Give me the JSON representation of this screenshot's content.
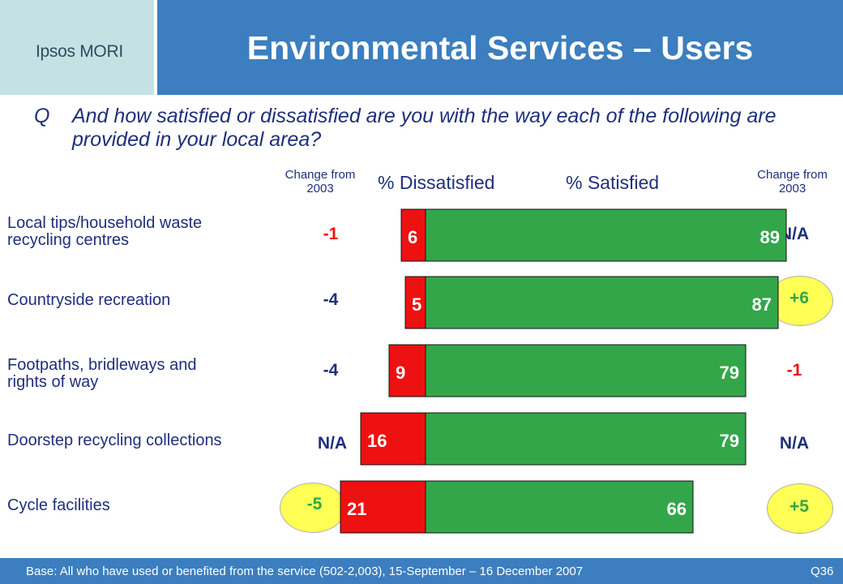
{
  "header": {
    "logo": "Ipsos MORI",
    "title": "Environmental Services – Users"
  },
  "question": {
    "letter": "Q",
    "text": "And how satisfied or dissatisfied are you with the way each of the following are provided in your local area?"
  },
  "column_headers": {
    "change_left_line1": "Change from",
    "change_left_line2": "2003",
    "dissatisfied": "% Dissatisfied",
    "satisfied": "% Satisfied",
    "change_right_line1": "Change from",
    "change_right_line2": "2003"
  },
  "colors": {
    "dissatisfied": "#ee1111",
    "satisfied": "#33a64a",
    "header_blue": "#3c7ebf",
    "text_navy": "#1f2f7d",
    "bubble": "#ffff55"
  },
  "rows": [
    {
      "label_line1": "Local tips/household waste",
      "label_line2": "recycling centres",
      "change_dissatisfied": "-1",
      "change_dissatisfied_color": "#ee1111",
      "change_satisfied": "N/A",
      "change_satisfied_color": "#1f2f7d"
    },
    {
      "label_line1": "Countryside recreation",
      "label_line2": "",
      "change_dissatisfied": "-4",
      "change_dissatisfied_color": "#1f2f7d",
      "change_satisfied": "+6",
      "change_satisfied_color": "#33a64a"
    },
    {
      "label_line1": "Footpaths, bridleways and",
      "label_line2": "rights of way",
      "change_dissatisfied": "-4",
      "change_dissatisfied_color": "#1f2f7d",
      "change_satisfied": "-1",
      "change_satisfied_color": "#ee1111"
    },
    {
      "label_line1": "Doorstep recycling collections",
      "label_line2": "",
      "change_dissatisfied": "N/A",
      "change_dissatisfied_color": "#1f2f7d",
      "change_satisfied": "N/A",
      "change_satisfied_color": "#1f2f7d"
    },
    {
      "label_line1": "Cycle facilities",
      "label_line2": "",
      "change_dissatisfied": "-5",
      "change_dissatisfied_color": "#33a64a",
      "change_satisfied": "+5",
      "change_satisfied_color": "#33a64a"
    }
  ],
  "chart_data": {
    "type": "bar",
    "orientation": "horizontal-diverging",
    "categories": [
      "Local tips/household waste recycling centres",
      "Countryside recreation",
      "Footpaths, bridleways and rights of way",
      "Doorstep recycling collections",
      "Cycle facilities"
    ],
    "series": [
      {
        "name": "% Dissatisfied",
        "values": [
          6,
          5,
          9,
          16,
          21
        ],
        "color": "#ee1111"
      },
      {
        "name": "% Satisfied",
        "values": [
          89,
          87,
          79,
          79,
          66
        ],
        "color": "#33a64a"
      }
    ],
    "grid": false
  },
  "footer": {
    "base": "Base: All who have used or benefited from the service (502-2,003), 15-September – 16 December 2007",
    "qnum": "Q36"
  }
}
